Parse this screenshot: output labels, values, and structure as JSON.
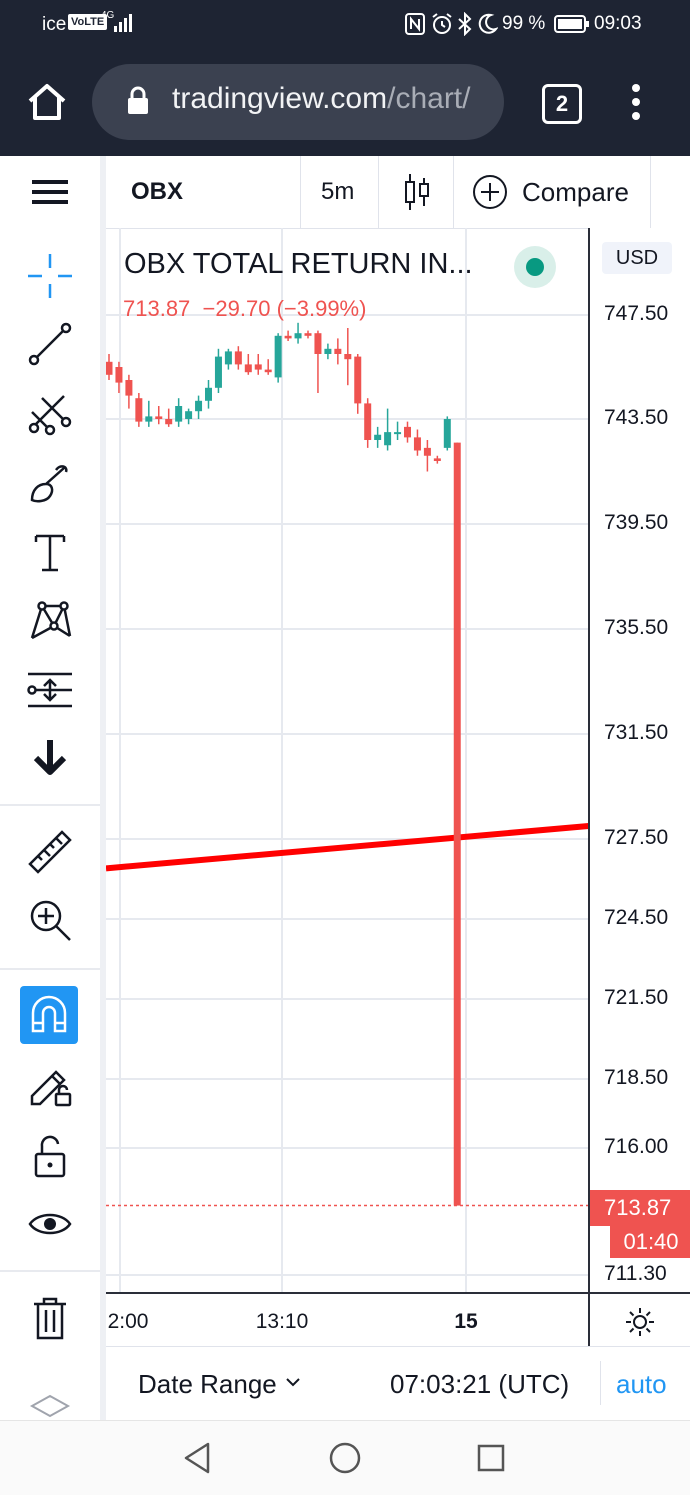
{
  "status_bar": {
    "carrier": "ice",
    "volte": "VoLTE",
    "network": "4G",
    "battery": "99 %",
    "time": "09:03"
  },
  "browser": {
    "url_main": "tradingview.com",
    "url_path": "/chart/",
    "tab_count": "2"
  },
  "toolbar": {
    "symbol": "OBX",
    "interval": "5m",
    "compare_label": "Compare"
  },
  "legend": {
    "title": "OBX TOTAL RETURN IN...",
    "last": "713.87",
    "change": "−29.70",
    "change_pct": "(−3.99%)"
  },
  "price_scale": {
    "currency": "USD",
    "current_price": "713.87",
    "countdown": "01:40"
  },
  "colors": {
    "up": "#26a69a",
    "down": "#ef5350",
    "trendline": "#ff0000",
    "accent": "#2196f3",
    "status_dot": "#089981"
  },
  "chart_data": {
    "type": "candlestick",
    "title": "OBX TOTAL RETURN IN...",
    "y_ticks": [
      "747.50",
      "743.50",
      "739.50",
      "735.50",
      "731.50",
      "727.50",
      "724.50",
      "721.50",
      "718.50",
      "716.00",
      "711.30"
    ],
    "x_ticks": [
      "2:00",
      "13:10",
      "15"
    ],
    "last_price": 713.87,
    "candles": [
      {
        "open": 745.7,
        "high": 746.0,
        "low": 745.0,
        "close": 745.2
      },
      {
        "open": 745.5,
        "high": 745.7,
        "low": 744.5,
        "close": 744.9
      },
      {
        "open": 745.0,
        "high": 745.2,
        "low": 743.9,
        "close": 744.4
      },
      {
        "open": 744.3,
        "high": 744.5,
        "low": 743.2,
        "close": 743.4
      },
      {
        "open": 743.4,
        "high": 744.2,
        "low": 743.2,
        "close": 743.6
      },
      {
        "open": 743.6,
        "high": 744.0,
        "low": 743.3,
        "close": 743.5
      },
      {
        "open": 743.5,
        "high": 743.9,
        "low": 743.2,
        "close": 743.3
      },
      {
        "open": 743.4,
        "high": 744.3,
        "low": 743.2,
        "close": 744.0
      },
      {
        "open": 743.5,
        "high": 743.9,
        "low": 743.3,
        "close": 743.8
      },
      {
        "open": 743.8,
        "high": 744.4,
        "low": 743.5,
        "close": 744.2
      },
      {
        "open": 744.2,
        "high": 745.0,
        "low": 743.9,
        "close": 744.7
      },
      {
        "open": 744.7,
        "high": 746.2,
        "low": 744.5,
        "close": 745.9
      },
      {
        "open": 745.6,
        "high": 746.2,
        "low": 745.4,
        "close": 746.1
      },
      {
        "open": 746.1,
        "high": 746.3,
        "low": 745.4,
        "close": 745.6
      },
      {
        "open": 745.6,
        "high": 746.0,
        "low": 745.2,
        "close": 745.3
      },
      {
        "open": 745.6,
        "high": 746.0,
        "low": 745.2,
        "close": 745.4
      },
      {
        "open": 745.4,
        "high": 745.8,
        "low": 745.2,
        "close": 745.3
      },
      {
        "open": 745.1,
        "high": 746.8,
        "low": 744.9,
        "close": 746.7
      },
      {
        "open": 746.7,
        "high": 746.9,
        "low": 746.5,
        "close": 746.6
      },
      {
        "open": 746.6,
        "high": 747.2,
        "low": 746.4,
        "close": 746.8
      },
      {
        "open": 746.8,
        "high": 746.9,
        "low": 746.6,
        "close": 746.7
      },
      {
        "open": 746.8,
        "high": 746.9,
        "low": 744.5,
        "close": 746.0
      },
      {
        "open": 746.0,
        "high": 746.4,
        "low": 745.8,
        "close": 746.2
      },
      {
        "open": 746.2,
        "high": 746.6,
        "low": 745.6,
        "close": 746.0
      },
      {
        "open": 746.0,
        "high": 747.0,
        "low": 744.8,
        "close": 745.8
      },
      {
        "open": 745.9,
        "high": 746.0,
        "low": 743.7,
        "close": 744.1
      },
      {
        "open": 744.1,
        "high": 744.3,
        "low": 742.4,
        "close": 742.7
      },
      {
        "open": 742.7,
        "high": 743.2,
        "low": 742.4,
        "close": 742.9
      },
      {
        "open": 742.5,
        "high": 743.9,
        "low": 742.3,
        "close": 743.0
      },
      {
        "open": 743.0,
        "high": 743.4,
        "low": 742.7,
        "close": 743.0
      },
      {
        "open": 743.2,
        "high": 743.4,
        "low": 742.6,
        "close": 742.8
      },
      {
        "open": 742.8,
        "high": 743.1,
        "low": 742.1,
        "close": 742.3
      },
      {
        "open": 742.4,
        "high": 742.7,
        "low": 741.5,
        "close": 742.1
      },
      {
        "open": 742.0,
        "high": 742.1,
        "low": 741.8,
        "close": 741.9
      },
      {
        "open": 742.4,
        "high": 743.6,
        "low": 742.3,
        "close": 743.5
      },
      {
        "open": 742.6,
        "high": 742.6,
        "low": 713.87,
        "close": 713.87
      }
    ],
    "trendline": {
      "start": 726.4,
      "end": 728.0
    }
  },
  "footer": {
    "date_range": "Date Range",
    "clock": "07:03:21 (UTC)",
    "auto": "auto"
  }
}
